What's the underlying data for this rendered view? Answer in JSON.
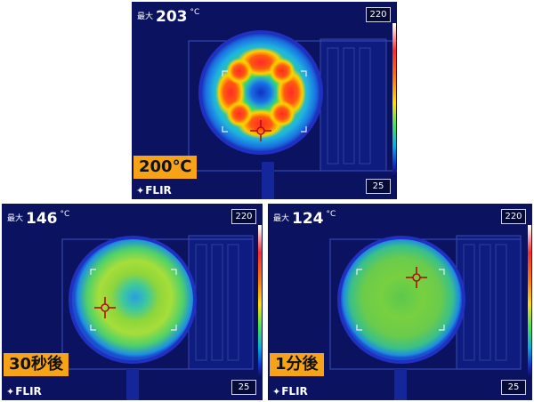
{
  "brand": {
    "logo_icon": "flir-mark-icon",
    "logo_text": "FLIR"
  },
  "panels": [
    {
      "max_label": "最大",
      "max_value": "203",
      "unit": "°C",
      "scale_max": "220",
      "scale_min": "25",
      "caption": "200℃"
    },
    {
      "max_label": "最大",
      "max_value": "146",
      "unit": "°C",
      "scale_max": "220",
      "scale_min": "25",
      "caption": "30秒後"
    },
    {
      "max_label": "最大",
      "max_value": "124",
      "unit": "°C",
      "scale_max": "220",
      "scale_min": "25",
      "caption": "1分後"
    }
  ],
  "colors": {
    "background": "#0b1360",
    "caption_bg": "#f6a317",
    "crosshair": "#b01010"
  }
}
